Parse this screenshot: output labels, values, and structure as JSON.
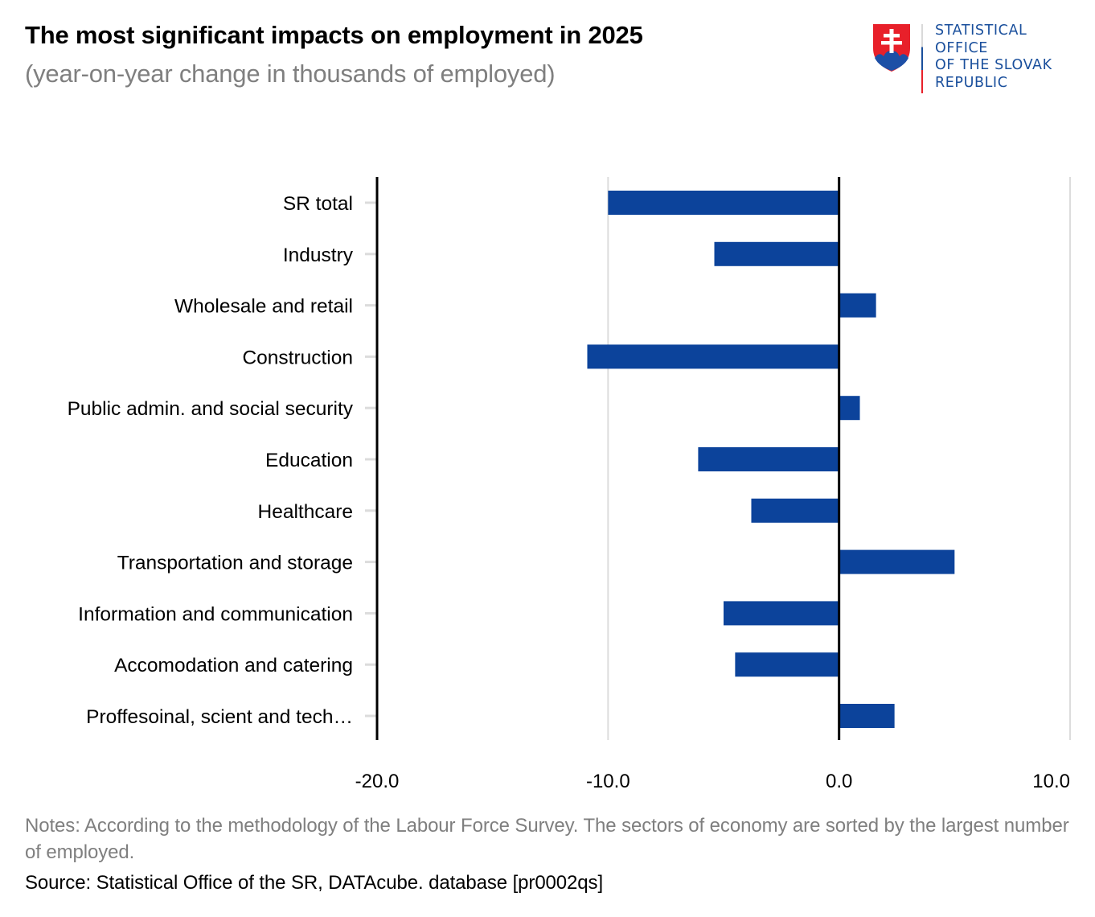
{
  "header": {
    "title": "The most significant impacts on employment in 2025",
    "subtitle": "(year-on-year change in thousands of employed)"
  },
  "logo": {
    "lines": [
      "STATISTICAL",
      "OFFICE",
      "OF THE SLOVAK",
      "REPUBLIC"
    ],
    "text_color": "#1a4f9c",
    "emblem": "slovak-coat-of-arms-icon"
  },
  "colors": {
    "bar": "#0c439b",
    "axis": "#000000",
    "grid": "#dcdcdc"
  },
  "chart_data": {
    "type": "bar",
    "orientation": "horizontal",
    "title": "The most significant impacts on employment in 2025",
    "subtitle": "(year-on-year change in thousands of employed)",
    "xlabel": "",
    "ylabel": "",
    "categories": [
      "SR total",
      "Industry",
      "Wholesale and retail",
      "Construction",
      "Public admin. and social security",
      "Education",
      "Healthcare",
      "Transportation and storage",
      "Information and communication",
      "Accomodation and catering",
      "Proffesoinal, scient and tech…"
    ],
    "values": [
      -10.0,
      -5.4,
      1.6,
      -10.9,
      0.9,
      -6.1,
      -3.8,
      5.0,
      -5.0,
      -4.5,
      2.4
    ],
    "xlim": [
      -20,
      10
    ],
    "xticks": [
      -20,
      -10,
      0,
      10
    ],
    "xtick_labels": [
      "-20.0",
      "-10.0",
      "0.0",
      "10.0"
    ],
    "grid": true,
    "legend": "none"
  },
  "footer": {
    "notes": "Notes: According to the methodology of the Labour Force Survey. The sectors of economy are sorted by the largest number of employed.",
    "source": "Source: Statistical Office of the SR, DATAcube. database [pr0002qs]"
  }
}
